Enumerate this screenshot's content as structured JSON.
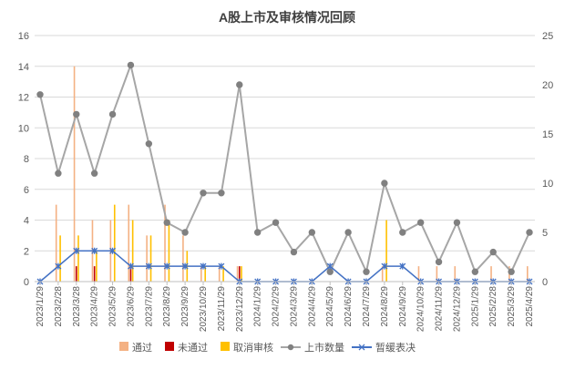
{
  "chart_data": {
    "type": "bar",
    "title": "A股上市及审核情况回顾",
    "left_axis": {
      "min": 0,
      "max": 16,
      "ticks": [
        0,
        2,
        4,
        6,
        8,
        10,
        12,
        14,
        16
      ]
    },
    "right_axis": {
      "min": 0,
      "max": 25,
      "ticks": [
        0,
        5,
        10,
        15,
        20,
        25
      ]
    },
    "grid": true,
    "legend_position": "bottom",
    "x_tick_labels": [
      "2023/1/29",
      "2023/2/28",
      "2023/3/28",
      "2023/4/29",
      "2023/5/29",
      "2023/6/29",
      "2023/7/29",
      "2023/8/29",
      "2023/9/29",
      "2023/10/29",
      "2023/11/29",
      "2023/12/29",
      "2024/1/29",
      "2024/2/29",
      "2024/3/29",
      "2024/4/29",
      "2024/5/29",
      "2024/6/29",
      "2024/7/29",
      "2024/8/29",
      "2024/9/29",
      "2024/10/29",
      "2024/11/29",
      "2024/12/29",
      "2025/1/29",
      "2025/2/28",
      "2025/3/29",
      "2025/4/29"
    ],
    "x": [
      "2023/1/29",
      "2023/2/28",
      "2023/3/28",
      "2023/4/29",
      "2023/5/29",
      "2023/6/29",
      "2023/7/29",
      "2023/8/29",
      "2023/9/29",
      "2023/10/29",
      "2023/11/29",
      "2023/12/29",
      "2024/1/29",
      "2024/2/29",
      "2024/3/29",
      "2024/4/29",
      "2024/5/29",
      "2024/6/29",
      "2024/7/29",
      "2024/8/29",
      "2024/9/29",
      "2024/10/29",
      "2024/11/29",
      "2024/12/29",
      "2025/1/29",
      "2025/2/28",
      "2025/3/29",
      "2025/4/29"
    ],
    "series": [
      {
        "name": "通过",
        "axis": "left",
        "kind": "bar",
        "color": "#f4b183",
        "values": [
          0,
          5,
          14,
          4,
          4,
          5,
          3,
          5,
          3,
          1,
          1,
          1,
          0,
          0,
          0,
          0,
          0,
          0,
          0,
          1,
          0,
          1,
          1,
          1,
          0,
          1,
          1,
          1
        ]
      },
      {
        "name": "未通过",
        "axis": "left",
        "kind": "bar",
        "color": "#c00000",
        "values": [
          0,
          0,
          1,
          1,
          0,
          1,
          0,
          0,
          0,
          0,
          0,
          1,
          0,
          0,
          0,
          0,
          0,
          0,
          0,
          0,
          0,
          0,
          0,
          0,
          0,
          0,
          0,
          0
        ]
      },
      {
        "name": "取消审核",
        "axis": "left",
        "kind": "bar",
        "color": "#ffc000",
        "values": [
          0,
          3,
          3,
          2,
          5,
          4,
          3,
          4,
          2,
          1,
          1,
          1,
          0,
          0,
          0,
          0,
          0,
          0,
          0,
          4,
          0,
          0,
          0,
          0,
          0,
          0,
          0,
          0
        ]
      },
      {
        "name": "上市数量",
        "axis": "right",
        "kind": "line",
        "color": "#a6a6a6",
        "values": [
          19,
          11,
          17,
          11,
          17,
          22,
          14,
          6,
          5,
          9,
          9,
          20,
          5,
          6,
          3,
          5,
          1,
          5,
          1,
          10,
          5,
          6,
          2,
          6,
          1,
          3,
          1,
          5
        ]
      },
      {
        "name": "暂缓表决",
        "axis": "left",
        "kind": "line",
        "color": "#4472c4",
        "values": [
          0,
          1,
          2,
          2,
          2,
          1,
          1,
          1,
          1,
          1,
          1,
          0,
          0,
          0,
          0,
          0,
          1,
          0,
          0,
          1,
          1,
          0,
          0,
          0,
          0,
          0,
          0,
          0
        ]
      }
    ]
  }
}
